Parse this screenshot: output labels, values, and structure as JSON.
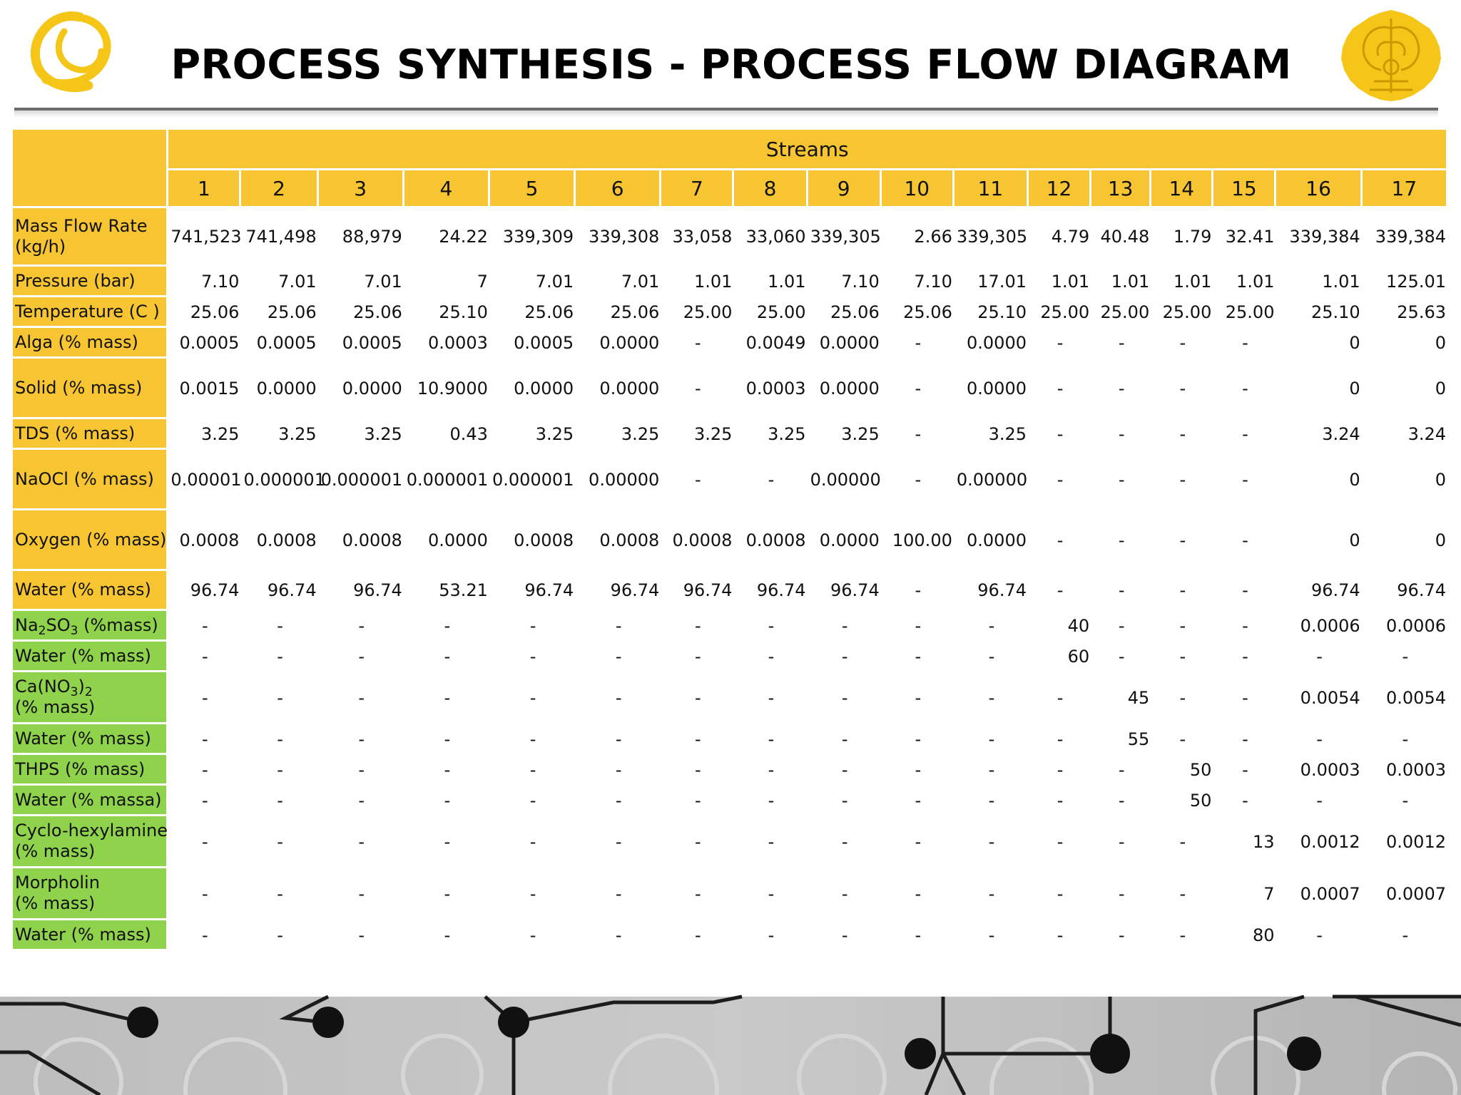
{
  "title": "PROCESS SYNTHESIS - PROCESS FLOW DIAGRAM",
  "colors": {
    "header_yellow": "#f7c531",
    "label_green": "#8fd24c",
    "logo_gold": "#f5c518"
  },
  "logos": {
    "left": "triangle-swirl-logo",
    "right": "university-crest-logo"
  },
  "table": {
    "group_header": "Streams",
    "stream_numbers": [
      "1",
      "2",
      "3",
      "4",
      "5",
      "6",
      "7",
      "8",
      "9",
      "10",
      "11",
      "12",
      "13",
      "14",
      "15",
      "16",
      "17"
    ],
    "rows": [
      {
        "label": "Mass Flow Rate (kg/h)",
        "label_html": "Mass Flow Rate<br>(kg/h)",
        "group": "y",
        "h": 82,
        "values": [
          "741,523",
          "741,498",
          "88,979",
          "24.22",
          "339,309",
          "339,308",
          "33,058",
          "33,060",
          "339,305",
          "2.66",
          "339,305",
          "4.79",
          "40.48",
          "1.79",
          "32.41",
          "339,384",
          "339,384"
        ]
      },
      {
        "label": "Pressure (bar)",
        "group": "y",
        "h": 43,
        "values": [
          "7.10",
          "7.01",
          "7.01",
          "7",
          "7.01",
          "7.01",
          "1.01",
          "1.01",
          "7.10",
          "7.10",
          "17.01",
          "1.01",
          "1.01",
          "1.01",
          "1.01",
          "1.01",
          "125.01"
        ]
      },
      {
        "label": "Temperature (C )",
        "group": "y",
        "h": 43,
        "values": [
          "25.06",
          "25.06",
          "25.06",
          "25.10",
          "25.06",
          "25.06",
          "25.00",
          "25.00",
          "25.06",
          "25.06",
          "25.10",
          "25.00",
          "25.00",
          "25.00",
          "25.00",
          "25.10",
          "25.63"
        ]
      },
      {
        "label": "Alga (% mass)",
        "group": "y",
        "h": 43,
        "values": [
          "0.0005",
          "0.0005",
          "0.0005",
          "0.0003",
          "0.0005",
          "0.0000",
          "-",
          "0.0049",
          "0.0000",
          "-",
          "0.0000",
          "-",
          "-",
          "-",
          "-",
          "0",
          "0"
        ]
      },
      {
        "label": "Solid (% mass)",
        "group": "y",
        "h": 85,
        "values": [
          "0.0015",
          "0.0000",
          "0.0000",
          "10.9000",
          "0.0000",
          "0.0000",
          "-",
          "0.0003",
          "0.0000",
          "-",
          "0.0000",
          "-",
          "-",
          "-",
          "-",
          "0",
          "0"
        ]
      },
      {
        "label": "TDS (% mass)",
        "group": "y",
        "h": 43,
        "values": [
          "3.25",
          "3.25",
          "3.25",
          "0.43",
          "3.25",
          "3.25",
          "3.25",
          "3.25",
          "3.25",
          "-",
          "3.25",
          "-",
          "-",
          "-",
          "-",
          "3.24",
          "3.24"
        ]
      },
      {
        "label": "NaOCl (% mass)",
        "group": "y",
        "h": 85,
        "values": [
          "0.00001",
          "0.000001",
          "0.000001",
          "0.000001",
          "0.000001",
          "0.00000",
          "-",
          "-",
          "0.00000",
          "-",
          "0.00000",
          "-",
          "-",
          "-",
          "-",
          "0",
          "0"
        ]
      },
      {
        "label": "Oxygen (% mass)",
        "group": "y",
        "h": 85,
        "values": [
          "0.0008",
          "0.0008",
          "0.0008",
          "0.0000",
          "0.0008",
          "0.0008",
          "0.0008",
          "0.0008",
          "0.0000",
          "100.00",
          "0.0000",
          "-",
          "-",
          "-",
          "-",
          "0",
          "0"
        ]
      },
      {
        "label": "Water  (% mass)",
        "group": "y",
        "h": 56,
        "values": [
          "96.74",
          "96.74",
          "96.74",
          "53.21",
          "96.74",
          "96.74",
          "96.74",
          "96.74",
          "96.74",
          "-",
          "96.74",
          "-",
          "-",
          "-",
          "-",
          "96.74",
          "96.74"
        ]
      },
      {
        "label": "Na2SO3 (%mass)",
        "label_html": "Na<sub>2</sub>SO<sub>3</sub> (%mass)",
        "group": "g",
        "h": 43,
        "values": [
          "-",
          "-",
          "-",
          "-",
          "-",
          "-",
          "-",
          "-",
          "-",
          "-",
          "-",
          "40",
          "-",
          "-",
          "-",
          "0.0006",
          "0.0006"
        ]
      },
      {
        "label": "Water  (% mass)",
        "group": "g",
        "h": 43,
        "values": [
          "-",
          "-",
          "-",
          "-",
          "-",
          "-",
          "-",
          "-",
          "-",
          "-",
          "-",
          "60",
          "-",
          "-",
          "-",
          "-",
          "-"
        ]
      },
      {
        "label": "Ca(NO3)2 (% mass)",
        "label_html": "Ca(NO<sub>3</sub>)<sub>2</sub><br>(% mass)",
        "group": "g",
        "h": 73,
        "values": [
          "-",
          "-",
          "-",
          "-",
          "-",
          "-",
          "-",
          "-",
          "-",
          "-",
          "-",
          "-",
          "45",
          "-",
          "-",
          "0.0054",
          "0.0054"
        ]
      },
      {
        "label": "Water (% mass)",
        "group": "g",
        "h": 43,
        "values": [
          "-",
          "-",
          "-",
          "-",
          "-",
          "-",
          "-",
          "-",
          "-",
          "-",
          "-",
          "-",
          "55",
          "-",
          "-",
          "-",
          "-"
        ]
      },
      {
        "label": "THPS (% mass)",
        "group": "g",
        "h": 43,
        "values": [
          "-",
          "-",
          "-",
          "-",
          "-",
          "-",
          "-",
          "-",
          "-",
          "-",
          "-",
          "-",
          "-",
          "50",
          "-",
          "0.0003",
          "0.0003"
        ]
      },
      {
        "label": "Water (% massa)",
        "group": "g",
        "h": 43,
        "values": [
          "-",
          "-",
          "-",
          "-",
          "-",
          "-",
          "-",
          "-",
          "-",
          "-",
          "-",
          "-",
          "-",
          "50",
          "-",
          "-",
          "-"
        ]
      },
      {
        "label": "Cyclo-hexylamine (% mass)",
        "label_html": "Cyclo-hexylamine<br>(% mass)",
        "group": "g",
        "h": 73,
        "values": [
          "-",
          "-",
          "-",
          "-",
          "-",
          "-",
          "-",
          "-",
          "-",
          "-",
          "-",
          "-",
          "-",
          "-",
          "13",
          "0.0012",
          "0.0012"
        ]
      },
      {
        "label": "Morpholin (% mass)",
        "label_html": "Morpholin<br>(% mass)",
        "group": "g",
        "h": 73,
        "values": [
          "-",
          "-",
          "-",
          "-",
          "-",
          "-",
          "-",
          "-",
          "-",
          "-",
          "-",
          "-",
          "-",
          "-",
          "7",
          "0.0007",
          "0.0007"
        ]
      },
      {
        "label": "Water (% mass)",
        "group": "g",
        "h": 43,
        "values": [
          "-",
          "-",
          "-",
          "-",
          "-",
          "-",
          "-",
          "-",
          "-",
          "-",
          "-",
          "-",
          "-",
          "-",
          "80",
          "-",
          "-"
        ]
      }
    ]
  }
}
